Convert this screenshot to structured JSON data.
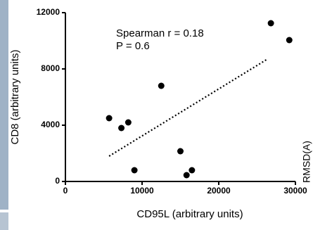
{
  "chart_data": {
    "type": "scatter",
    "x_label": "CD95L (arbitrary units)",
    "y_label": "CD8 (arbitrary units)",
    "annotations": [
      "Spearman r = 0.18",
      "P = 0.6"
    ],
    "side_label": "RMSD(A)",
    "x": [
      5700,
      7300,
      8200,
      9000,
      12500,
      15000,
      15800,
      16500,
      26800,
      29200
    ],
    "values": [
      4500,
      3800,
      4200,
      800,
      6800,
      2150,
      450,
      800,
      11250,
      10050
    ],
    "color": "#000000",
    "trendline": {
      "x": [
        5700,
        26200
      ],
      "y": [
        1800,
        8650
      ]
    },
    "xlim": [
      0,
      30000
    ],
    "xticks": [
      0,
      10000,
      20000,
      30000
    ],
    "ylim": [
      0,
      12000
    ],
    "yticks": [
      0,
      4000,
      8000,
      12000
    ]
  }
}
